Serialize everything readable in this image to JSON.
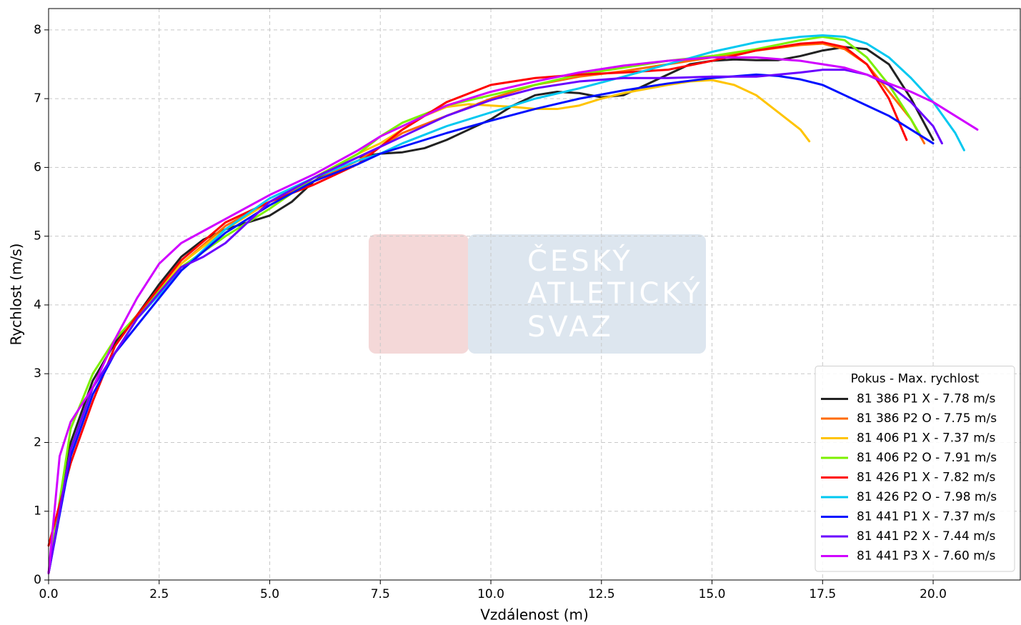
{
  "chart_data": {
    "type": "line",
    "xlabel": "Vzdálenost (m)",
    "ylabel": "Rychlost (m/s)",
    "watermark": [
      "ČESKÝ",
      "ATLETICKÝ",
      "SVAZ"
    ],
    "legend_title": "Pokus - Max. rychlost",
    "legend": "lower right",
    "grid": true,
    "xlim": [
      0,
      21.97
    ],
    "ylim": [
      0,
      8.31
    ],
    "xticks": [
      {
        "value": 0,
        "label": "0.0"
      },
      2.5,
      {
        "value": 5,
        "label": "5.0"
      },
      7.5,
      {
        "value": 10,
        "label": "10.0"
      },
      12.5,
      {
        "value": 15,
        "label": "15.0"
      },
      17.5,
      {
        "value": 20,
        "label": "20.0"
      }
    ],
    "yticks": [
      0,
      1,
      2,
      3,
      4,
      5,
      6,
      7,
      8
    ],
    "series": [
      {
        "name": "81 386 P1 X - 7.78 m/s",
        "color": "#222222",
        "x": [
          0,
          0.5,
          1,
          1.5,
          2,
          2.5,
          3,
          3.5,
          4,
          4.5,
          5,
          5.5,
          6,
          6.5,
          7,
          7.5,
          8,
          8.5,
          9,
          9.5,
          10,
          10.5,
          11,
          11.5,
          12,
          12.5,
          13,
          13.5,
          14,
          14.5,
          15,
          15.5,
          16,
          16.5,
          17,
          17.5,
          18,
          18.5,
          19,
          19.5,
          20
        ],
        "values": [
          0.1,
          2.0,
          2.9,
          3.45,
          3.85,
          4.3,
          4.7,
          4.95,
          5.1,
          5.2,
          5.3,
          5.5,
          5.8,
          6.0,
          6.15,
          6.2,
          6.22,
          6.28,
          6.4,
          6.55,
          6.7,
          6.9,
          7.05,
          7.1,
          7.08,
          7.02,
          7.05,
          7.2,
          7.35,
          7.5,
          7.55,
          7.57,
          7.56,
          7.56,
          7.62,
          7.7,
          7.75,
          7.72,
          7.5,
          7.0,
          6.4
        ]
      },
      {
        "name": "81 386 P2 O - 7.75 m/s",
        "color": "#ff6a00",
        "x": [
          0,
          0.5,
          1,
          2,
          3,
          4,
          5,
          6,
          7,
          7.5,
          8,
          9,
          10,
          11,
          12,
          13,
          14,
          15,
          16,
          17,
          17.5,
          18,
          18.5,
          19,
          19.5,
          19.8
        ],
        "values": [
          0.1,
          1.9,
          2.8,
          3.8,
          4.6,
          5.15,
          5.5,
          5.8,
          6.1,
          6.3,
          6.5,
          6.75,
          7.0,
          7.2,
          7.32,
          7.4,
          7.5,
          7.6,
          7.7,
          7.78,
          7.8,
          7.72,
          7.5,
          7.1,
          6.7,
          6.35
        ]
      },
      {
        "name": "81 406 P1 X - 7.37 m/s",
        "color": "#ffc400",
        "x": [
          0,
          0.5,
          1,
          2,
          3,
          4,
          5,
          6,
          7,
          7.5,
          8,
          8.5,
          9,
          9.5,
          10,
          10.5,
          11,
          11.5,
          12,
          12.5,
          13,
          14,
          14.5,
          15,
          15.5,
          16,
          16.5,
          17,
          17.2
        ],
        "values": [
          0.1,
          1.9,
          2.8,
          3.8,
          4.6,
          5.1,
          5.5,
          5.85,
          6.2,
          6.35,
          6.55,
          6.75,
          6.88,
          6.92,
          6.9,
          6.88,
          6.85,
          6.85,
          6.9,
          7.0,
          7.08,
          7.2,
          7.25,
          7.27,
          7.2,
          7.05,
          6.8,
          6.55,
          6.38
        ]
      },
      {
        "name": "81 406 P2 O - 7.91 m/s",
        "color": "#7cf000",
        "x": [
          0,
          0.5,
          1,
          1.5,
          2,
          3,
          4,
          5,
          6,
          7,
          7.5,
          8,
          9,
          10,
          11,
          12,
          13,
          14,
          15,
          16,
          17,
          17.5,
          18,
          18.5,
          19,
          19.5,
          19.7
        ],
        "values": [
          0.1,
          2.2,
          3.0,
          3.5,
          3.85,
          4.55,
          5.0,
          5.4,
          5.85,
          6.2,
          6.45,
          6.65,
          6.9,
          7.05,
          7.2,
          7.35,
          7.45,
          7.55,
          7.62,
          7.72,
          7.85,
          7.9,
          7.85,
          7.6,
          7.2,
          6.7,
          6.48
        ]
      },
      {
        "name": "81 426 P1 X - 7.82 m/s",
        "color": "#ff0000",
        "x": [
          0,
          0.5,
          1,
          1.5,
          2,
          3,
          4,
          5,
          6,
          7,
          7.5,
          8,
          9,
          10,
          11,
          12,
          13,
          14,
          15,
          16,
          17,
          17.5,
          18,
          18.5,
          19,
          19.4
        ],
        "values": [
          0.5,
          1.7,
          2.6,
          3.4,
          3.85,
          4.65,
          5.2,
          5.5,
          5.75,
          6.05,
          6.3,
          6.55,
          6.95,
          7.2,
          7.3,
          7.35,
          7.38,
          7.42,
          7.55,
          7.7,
          7.8,
          7.82,
          7.75,
          7.5,
          7.0,
          6.4
        ]
      },
      {
        "name": "81 426 P2 O - 7.98 m/s",
        "color": "#00c8f0",
        "x": [
          0,
          0.5,
          1,
          2,
          3,
          4,
          5,
          6,
          7,
          7.5,
          8,
          9,
          10,
          11,
          12,
          13,
          14,
          15,
          16,
          17,
          17.5,
          18,
          18.5,
          19,
          19.5,
          20,
          20.5,
          20.7
        ],
        "values": [
          0.1,
          1.9,
          2.8,
          3.8,
          4.5,
          5.1,
          5.55,
          5.85,
          6.1,
          6.2,
          6.35,
          6.6,
          6.8,
          7.0,
          7.15,
          7.32,
          7.5,
          7.68,
          7.82,
          7.9,
          7.92,
          7.9,
          7.8,
          7.6,
          7.3,
          6.95,
          6.5,
          6.25
        ]
      },
      {
        "name": "81 441 P1 X - 7.37 m/s",
        "color": "#0010ff",
        "x": [
          0,
          0.5,
          1,
          1.5,
          2,
          3,
          4,
          5,
          6,
          7,
          7.5,
          8,
          9,
          10,
          11,
          12,
          13,
          14,
          15,
          16,
          16.5,
          17,
          17.5,
          18,
          18.5,
          19,
          19.5,
          20
        ],
        "values": [
          0.1,
          1.8,
          2.7,
          3.3,
          3.7,
          4.5,
          5.05,
          5.45,
          5.8,
          6.05,
          6.2,
          6.3,
          6.5,
          6.68,
          6.85,
          7.0,
          7.12,
          7.22,
          7.3,
          7.35,
          7.33,
          7.28,
          7.2,
          7.05,
          6.9,
          6.75,
          6.55,
          6.35
        ]
      },
      {
        "name": "81 441 P2 X - 7.44 m/s",
        "color": "#6a00ff",
        "x": [
          0,
          0.5,
          1,
          2,
          3,
          3.5,
          4,
          4.5,
          5,
          6,
          7,
          7.5,
          8,
          9,
          10,
          11,
          12,
          13,
          14,
          15,
          16,
          17,
          17.5,
          18,
          18.5,
          19,
          19.5,
          20,
          20.2
        ],
        "values": [
          0.1,
          1.9,
          2.8,
          3.8,
          4.55,
          4.7,
          4.9,
          5.2,
          5.5,
          5.85,
          6.15,
          6.3,
          6.45,
          6.75,
          6.98,
          7.15,
          7.25,
          7.3,
          7.3,
          7.32,
          7.32,
          7.38,
          7.42,
          7.42,
          7.35,
          7.2,
          6.95,
          6.6,
          6.35
        ]
      },
      {
        "name": "81 441 P3 X - 7.60 m/s",
        "color": "#d000ff",
        "x": [
          0,
          0.25,
          0.5,
          1,
          1.5,
          2,
          2.5,
          3,
          4,
          5,
          6,
          7,
          7.5,
          8,
          9,
          10,
          11,
          12,
          13,
          14,
          15,
          16,
          17,
          18,
          18.5,
          19,
          19.5,
          20,
          20.5,
          21
        ],
        "values": [
          0.1,
          1.8,
          2.3,
          2.8,
          3.5,
          4.1,
          4.6,
          4.9,
          5.25,
          5.6,
          5.9,
          6.25,
          6.45,
          6.6,
          6.9,
          7.1,
          7.25,
          7.38,
          7.48,
          7.55,
          7.6,
          7.6,
          7.55,
          7.45,
          7.35,
          7.22,
          7.1,
          6.95,
          6.75,
          6.55
        ]
      }
    ]
  }
}
